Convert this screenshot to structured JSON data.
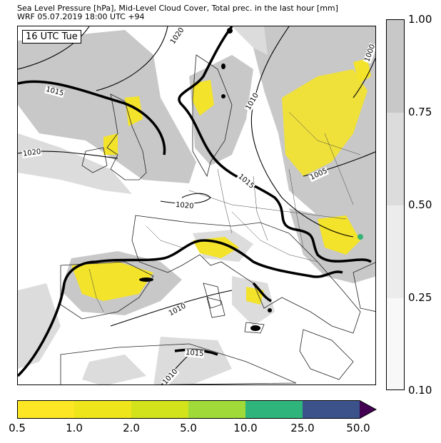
{
  "header": {
    "line1": "Sea Level Pressure [hPa], Mid-Level Cloud Cover, Total prec. in the last hour [mm]",
    "line2": "WRF 05.07.2019 18:00 UTC +94"
  },
  "map": {
    "time_label": "16 UTC Tue",
    "isobar_labels": [
      "1020",
      "1015",
      "1020",
      "1010",
      "1000",
      "1015",
      "1005",
      "1020",
      "1010",
      "1015",
      "1010"
    ],
    "colors": {
      "cloud_high": "#c8c8c8",
      "cloud_mid": "#dcdcdc",
      "precip_light": "#f3e32a",
      "precip_medium": "#33b377"
    }
  },
  "cloud_colorbar": {
    "ticks": [
      "1.00",
      "0.75",
      "0.50",
      "0.25",
      "0.10"
    ],
    "colors": [
      "#c8c8c8",
      "#dcdcdc",
      "#ececec",
      "#f8f8f8"
    ]
  },
  "precip_colorbar": {
    "ticks": [
      "0.5",
      "1.0",
      "2.0",
      "5.0",
      "10.0",
      "25.0",
      "50.0"
    ],
    "colors": [
      "#fde725",
      "#eee51b",
      "#d2e21b",
      "#a0da39",
      "#2fb47c",
      "#3b528b",
      "#440154"
    ]
  }
}
